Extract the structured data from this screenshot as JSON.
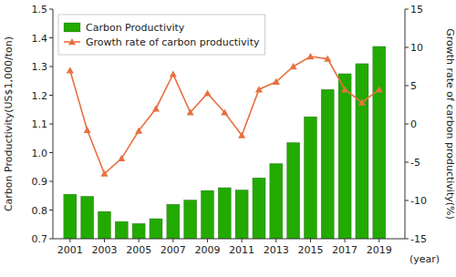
{
  "chart_data": {
    "type": "bar",
    "xlabel": "(year)",
    "ylabel": "Carbon Productivity(US$1,000/ton)",
    "y2label": "Growth rate of carbon productivity(%)",
    "x": [
      2001,
      2002,
      2003,
      2004,
      2005,
      2006,
      2007,
      2008,
      2009,
      2010,
      2011,
      2012,
      2013,
      2014,
      2015,
      2016,
      2017,
      2018,
      2019
    ],
    "series": [
      {
        "name": "Carbon Productivity",
        "type": "bar",
        "color": "#22aa00",
        "values": [
          0.855,
          0.848,
          0.795,
          0.76,
          0.753,
          0.77,
          0.82,
          0.835,
          0.868,
          0.878,
          0.87,
          0.912,
          0.962,
          1.035,
          1.125,
          1.22,
          1.275,
          1.31,
          1.37
        ]
      },
      {
        "name": "Growth rate of carbon productivity",
        "type": "line",
        "axis": "y2",
        "color": "#e87040",
        "marker": "triangle",
        "values": [
          7.0,
          -0.8,
          -6.5,
          -4.5,
          -0.9,
          2.0,
          6.5,
          1.5,
          4.0,
          1.5,
          -1.5,
          4.5,
          5.5,
          7.5,
          8.8,
          8.5,
          4.5,
          2.8,
          4.5
        ]
      }
    ],
    "xlim": [
      2000.0,
      2020.5
    ],
    "xticks": [
      2001,
      2003,
      2005,
      2007,
      2009,
      2011,
      2013,
      2015,
      2017,
      2019
    ],
    "ylim": [
      0.7,
      1.5
    ],
    "yticks": [
      0.7,
      0.8,
      0.9,
      {
        "value": 1.0,
        "label": "1.0"
      },
      1.1,
      1.2,
      1.3,
      1.4,
      1.5
    ],
    "y2lim": [
      -15,
      15
    ],
    "y2ticks": [
      -15,
      -10,
      -5,
      0,
      5,
      10,
      15
    ],
    "grid": false,
    "legend": "upper left"
  }
}
